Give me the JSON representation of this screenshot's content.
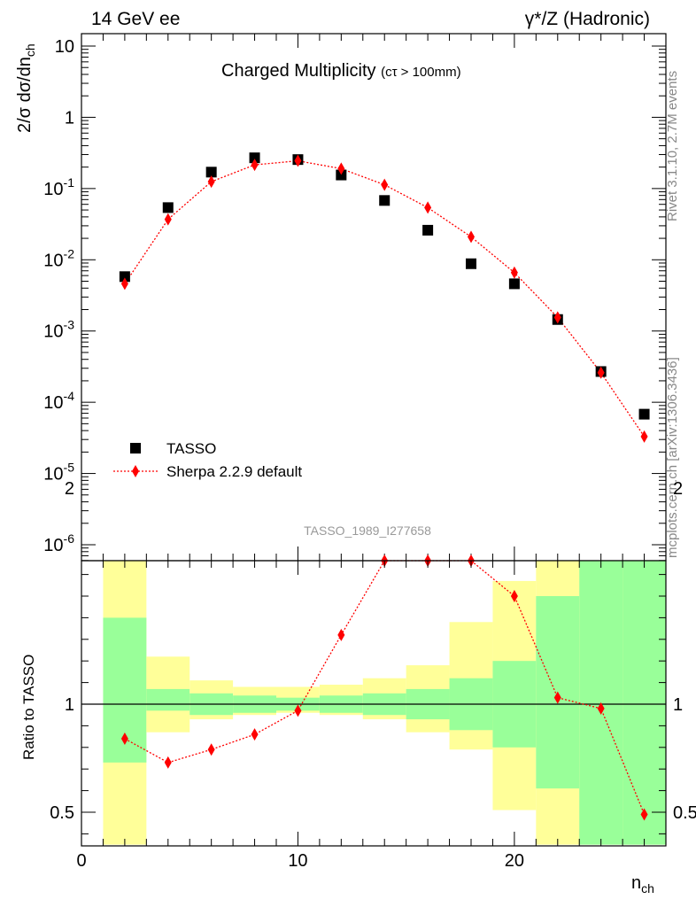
{
  "header": {
    "left": "14 GeV ee",
    "right": "γ*/Z (Hadronic)"
  },
  "side_labels": {
    "rivet": "Rivet 3.1.10,  2.7M events",
    "mcplots": "mcplots.cern.ch [arXiv:1306.3436]"
  },
  "main_plot": {
    "title": "Charged Multiplicity",
    "title_note": "(cτ > 100mm)",
    "ylabel": "2/σ dσ/dn",
    "ylabel_sub": "ch",
    "analysis_id": "TASSO_1989_I277658",
    "legend": {
      "data": "TASSO",
      "mc": "Sherpa 2.2.9 default"
    }
  },
  "ratio_plot": {
    "ylabel": "Ratio to TASSO",
    "xlabel": "n",
    "xlabel_sub": "ch"
  },
  "colors": {
    "data": "#000000",
    "mc": "#ff0000",
    "band_inner": "#99ff99",
    "band_outer": "#ffff99"
  },
  "chart_data": [
    {
      "type": "scatter",
      "yscale": "log",
      "ylim": [
        3e-07,
        20
      ],
      "xlim": [
        0,
        27
      ],
      "series": [
        {
          "name": "TASSO",
          "x": [
            2,
            4,
            6,
            8,
            10,
            12,
            14,
            16,
            18,
            20,
            22,
            24,
            26
          ],
          "y": [
            0.0058,
            0.054,
            0.17,
            0.27,
            0.255,
            0.155,
            0.068,
            0.026,
            0.0088,
            0.0046,
            0.00145,
            0.00027,
            6.8e-05
          ]
        },
        {
          "name": "Sherpa 2.2.9 default",
          "x": [
            2,
            4,
            6,
            8,
            10,
            12,
            14,
            16,
            18,
            20,
            22,
            24,
            26
          ],
          "y": [
            0.0046,
            0.037,
            0.125,
            0.215,
            0.245,
            0.19,
            0.113,
            0.054,
            0.021,
            0.0066,
            0.00155,
            0.00026,
            3.3e-05
          ]
        }
      ],
      "y_tick_labels": [
        "10",
        "1",
        "10^-1",
        "10^-2",
        "10^-3",
        "10^-4",
        "10^-5",
        "10^-6"
      ]
    },
    {
      "type": "line",
      "ylim": [
        0.35,
        2.3
      ],
      "xlim": [
        0,
        27
      ],
      "x": [
        2,
        4,
        6,
        8,
        10,
        12,
        14,
        16,
        18,
        20,
        22,
        24,
        26
      ],
      "ratio": [
        0.84,
        0.73,
        0.79,
        0.86,
        0.97,
        1.32,
        1.73,
        2.06,
        2.38,
        1.5,
        1.03,
        0.98,
        0.49
      ],
      "bands": {
        "x_edges": [
          1,
          3,
          5,
          7,
          9,
          11,
          13,
          15,
          17,
          19,
          21,
          23,
          25,
          27
        ],
        "inner_low": [
          0.73,
          0.97,
          0.95,
          0.96,
          0.97,
          0.96,
          0.95,
          0.93,
          0.88,
          0.8,
          0.61,
          0.35,
          0.35
        ],
        "inner_high": [
          1.4,
          1.07,
          1.05,
          1.04,
          1.03,
          1.04,
          1.05,
          1.07,
          1.12,
          1.2,
          1.5,
          1.85,
          2.4
        ],
        "outer_low": [
          0.35,
          0.87,
          0.93,
          0.95,
          0.96,
          0.95,
          0.93,
          0.87,
          0.79,
          0.51,
          0.35,
          0.35,
          0.35
        ],
        "outer_high": [
          1.7,
          1.22,
          1.11,
          1.08,
          1.08,
          1.09,
          1.12,
          1.18,
          1.38,
          1.57,
          1.87,
          2.35,
          2.4
        ]
      },
      "y_tick_labels": [
        "0.5",
        "1",
        "2"
      ],
      "x_tick_labels": [
        "0",
        "10",
        "20"
      ]
    }
  ]
}
